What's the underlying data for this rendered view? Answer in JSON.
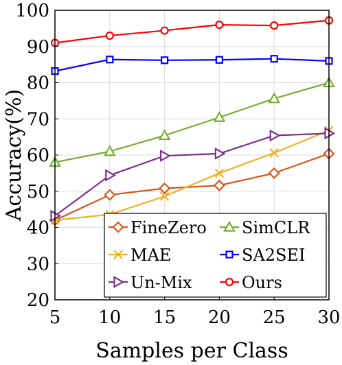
{
  "chart_data": {
    "type": "line",
    "xlabel": "Samples per Class",
    "ylabel": "Accuracy(%)",
    "x": [
      5,
      10,
      15,
      20,
      25,
      30
    ],
    "xlim": [
      5,
      30
    ],
    "ylim": [
      20,
      100
    ],
    "xticks": [
      "5",
      "10",
      "15",
      "20",
      "25",
      "30"
    ],
    "yticks": [
      "20",
      "30",
      "40",
      "50",
      "60",
      "70",
      "80",
      "90",
      "100"
    ],
    "grid": true,
    "legend_position": "bottom-right",
    "series": [
      {
        "name": "FineZero",
        "color": "#d95319",
        "marker": "diamond",
        "values": [
          42.0,
          49.0,
          50.8,
          51.6,
          55.0,
          60.4
        ]
      },
      {
        "name": "SimCLR",
        "color": "#77ac30",
        "marker": "triangle-up",
        "values": [
          58.0,
          61.0,
          65.4,
          70.4,
          75.6,
          80.0
        ]
      },
      {
        "name": "MAE",
        "color": "#edb120",
        "marker": "x",
        "values": [
          42.0,
          43.6,
          48.6,
          55.0,
          60.6,
          66.8
        ]
      },
      {
        "name": "SA2SEI",
        "color": "#0000ff",
        "marker": "square",
        "values": [
          83.2,
          86.4,
          86.2,
          86.3,
          86.6,
          86.0
        ]
      },
      {
        "name": "Un-Mix",
        "color": "#7e2f8e",
        "marker": "triangle-right",
        "values": [
          43.2,
          54.4,
          59.8,
          60.4,
          65.4,
          66.0
        ]
      },
      {
        "name": "Ours",
        "color": "#ff0000",
        "marker": "circle",
        "values": [
          91.0,
          93.0,
          94.4,
          96.0,
          95.8,
          97.2
        ]
      }
    ]
  }
}
